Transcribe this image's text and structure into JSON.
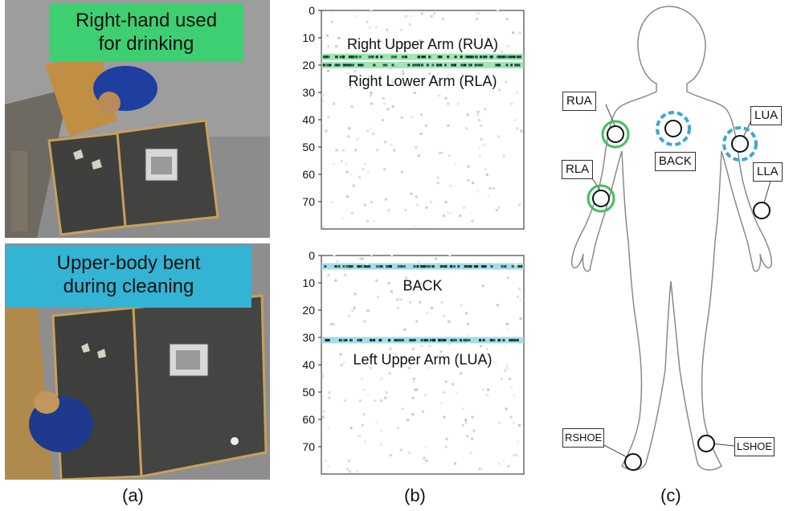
{
  "panels": {
    "a": {
      "label": "(a)",
      "top_caption_line1": "Right-hand used",
      "top_caption_line2": "for drinking",
      "bottom_caption_line1": "Upper-body bent",
      "bottom_caption_line2": "during cleaning"
    },
    "b": {
      "label": "(b)"
    },
    "c": {
      "label": "(c)"
    }
  },
  "chart_data": [
    {
      "type": "heatmap",
      "y_ticks": [
        "0",
        "10",
        "20",
        "30",
        "40",
        "50",
        "60",
        "70"
      ],
      "ylim": [
        0,
        80
      ],
      "highlight_color": "#8fe0a5",
      "annotations": [
        "Right Upper Arm (RUA)",
        "Right Lower Arm (RLA)"
      ],
      "highlighted_rows": [
        17,
        20
      ]
    },
    {
      "type": "heatmap",
      "y_ticks": [
        "0",
        "10",
        "20",
        "30",
        "40",
        "50",
        "60",
        "70"
      ],
      "ylim": [
        0,
        80
      ],
      "highlight_color": "#9ad6e6",
      "annotations": [
        "BACK",
        "Left Upper Arm (LUA)"
      ],
      "highlighted_rows": [
        4,
        31
      ]
    }
  ],
  "sensors": {
    "rua": "RUA",
    "rla": "RLA",
    "back": "BACK",
    "lua": "LUA",
    "lla": "LLA",
    "rshoe": "RSHOE",
    "lshoe": "LSHOE"
  },
  "colors": {
    "green_highlight": "#3fbf5f",
    "blue_highlight": "#3aa7d6",
    "body_outline": "#8a8a8a"
  }
}
